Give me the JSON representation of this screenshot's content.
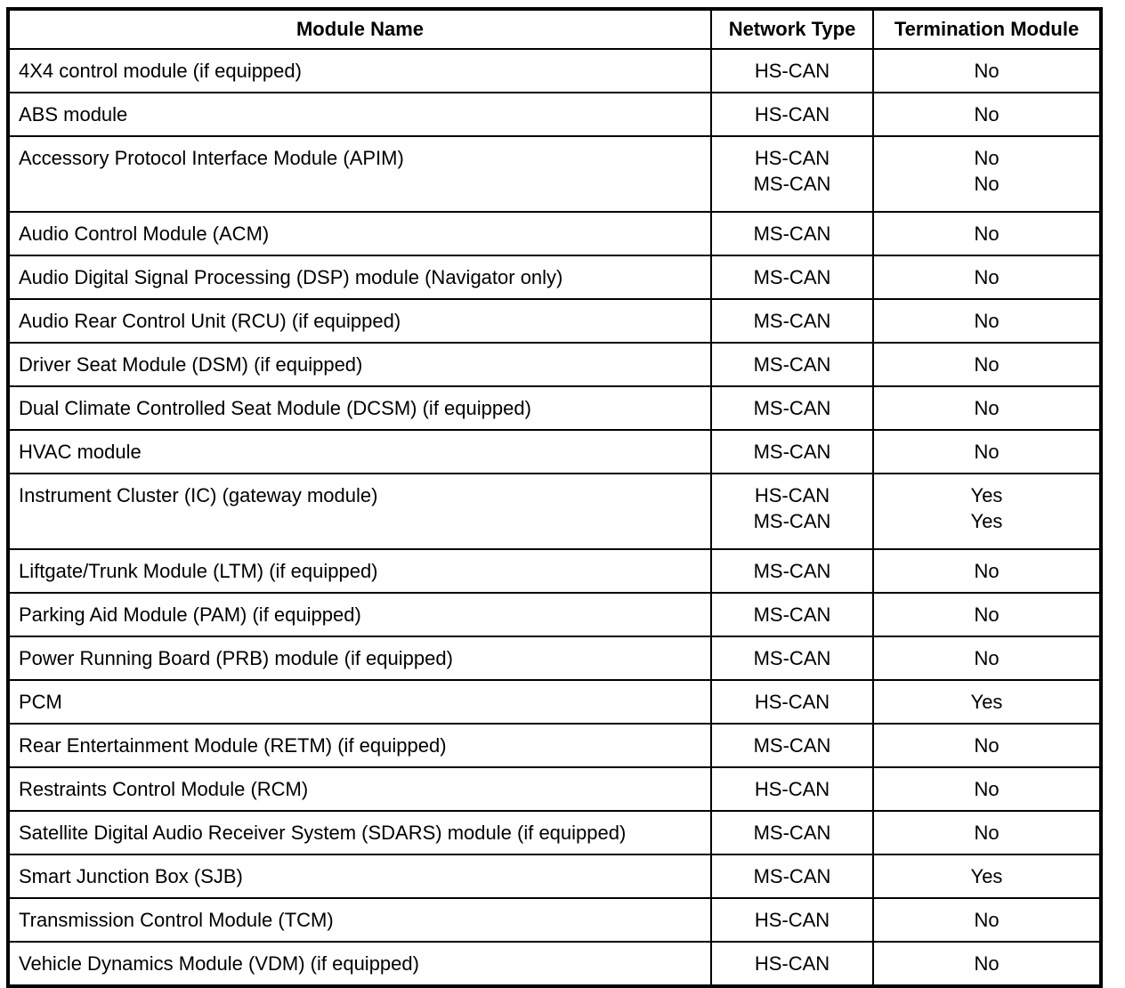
{
  "table": {
    "headers": [
      "Module Name",
      "Network Type",
      "Termination Module"
    ],
    "rows": [
      {
        "module_name": "4X4 control module (if equipped)",
        "network_type": [
          "HS-CAN"
        ],
        "termination_module": [
          "No"
        ]
      },
      {
        "module_name": "ABS module",
        "network_type": [
          "HS-CAN"
        ],
        "termination_module": [
          "No"
        ]
      },
      {
        "module_name": "Accessory Protocol Interface Module (APIM)",
        "network_type": [
          "HS-CAN",
          "MS-CAN"
        ],
        "termination_module": [
          "No",
          "No"
        ]
      },
      {
        "module_name": "Audio Control Module (ACM)",
        "network_type": [
          "MS-CAN"
        ],
        "termination_module": [
          "No"
        ]
      },
      {
        "module_name": "Audio Digital Signal Processing (DSP) module (Navigator only)",
        "network_type": [
          "MS-CAN"
        ],
        "termination_module": [
          "No"
        ]
      },
      {
        "module_name": "Audio Rear Control Unit (RCU) (if equipped)",
        "network_type": [
          "MS-CAN"
        ],
        "termination_module": [
          "No"
        ]
      },
      {
        "module_name": "Driver Seat Module (DSM) (if equipped)",
        "network_type": [
          "MS-CAN"
        ],
        "termination_module": [
          "No"
        ]
      },
      {
        "module_name": "Dual Climate Controlled Seat Module (DCSM) (if equipped)",
        "network_type": [
          "MS-CAN"
        ],
        "termination_module": [
          "No"
        ]
      },
      {
        "module_name": "HVAC module",
        "network_type": [
          "MS-CAN"
        ],
        "termination_module": [
          "No"
        ]
      },
      {
        "module_name": "Instrument Cluster (IC) (gateway module)",
        "network_type": [
          "HS-CAN",
          "MS-CAN"
        ],
        "termination_module": [
          "Yes",
          "Yes"
        ]
      },
      {
        "module_name": "Liftgate/Trunk Module (LTM) (if equipped)",
        "network_type": [
          "MS-CAN"
        ],
        "termination_module": [
          "No"
        ]
      },
      {
        "module_name": "Parking Aid Module (PAM) (if equipped)",
        "network_type": [
          "MS-CAN"
        ],
        "termination_module": [
          "No"
        ]
      },
      {
        "module_name": "Power Running Board (PRB) module (if equipped)",
        "network_type": [
          "MS-CAN"
        ],
        "termination_module": [
          "No"
        ]
      },
      {
        "module_name": "PCM",
        "network_type": [
          "HS-CAN"
        ],
        "termination_module": [
          "Yes"
        ]
      },
      {
        "module_name": "Rear Entertainment Module (RETM) (if equipped)",
        "network_type": [
          "MS-CAN"
        ],
        "termination_module": [
          "No"
        ]
      },
      {
        "module_name": "Restraints Control Module (RCM)",
        "network_type": [
          "HS-CAN"
        ],
        "termination_module": [
          "No"
        ]
      },
      {
        "module_name": "Satellite Digital Audio Receiver System (SDARS) module (if equipped)",
        "network_type": [
          "MS-CAN"
        ],
        "termination_module": [
          "No"
        ]
      },
      {
        "module_name": "Smart Junction Box (SJB)",
        "network_type": [
          "MS-CAN"
        ],
        "termination_module": [
          "Yes"
        ]
      },
      {
        "module_name": "Transmission Control Module (TCM)",
        "network_type": [
          "HS-CAN"
        ],
        "termination_module": [
          "No"
        ]
      },
      {
        "module_name": "Vehicle Dynamics Module (VDM) (if equipped)",
        "network_type": [
          "HS-CAN"
        ],
        "termination_module": [
          "No"
        ]
      }
    ]
  }
}
